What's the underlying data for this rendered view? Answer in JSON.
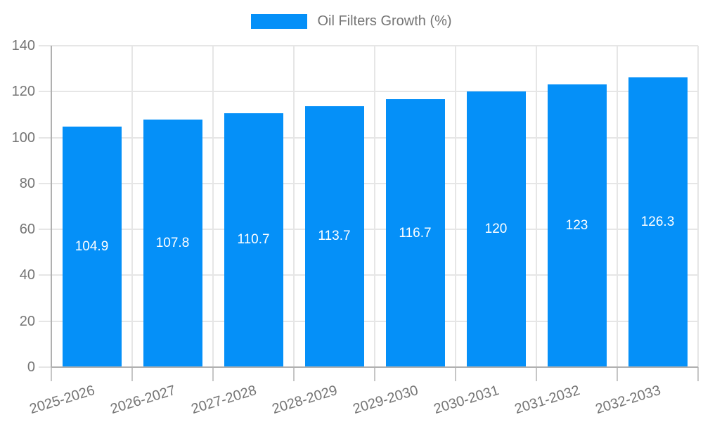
{
  "chart_data": {
    "type": "bar",
    "title": "Oil Filters Growth (%)",
    "categories": [
      "2025-2026",
      "2026-2027",
      "2027-2028",
      "2028-2029",
      "2029-2030",
      "2030-2031",
      "2031-2032",
      "2032-2033"
    ],
    "values": [
      104.9,
      107.8,
      110.7,
      113.7,
      116.7,
      120,
      123,
      126.3
    ],
    "xlabel": "",
    "ylabel": "",
    "ylim": [
      0,
      140
    ],
    "ytick_step": 20,
    "yticks": [
      0,
      20,
      40,
      60,
      80,
      100,
      120,
      140
    ],
    "legend_position": "top",
    "grid": true,
    "bar_color": "#0590f8",
    "grid_color": "#e6e6e6",
    "axis_color": "#b0b0b0",
    "tick_color": "#c6c6c6",
    "label_color": "#757575",
    "value_label_color": "#ffffff"
  }
}
